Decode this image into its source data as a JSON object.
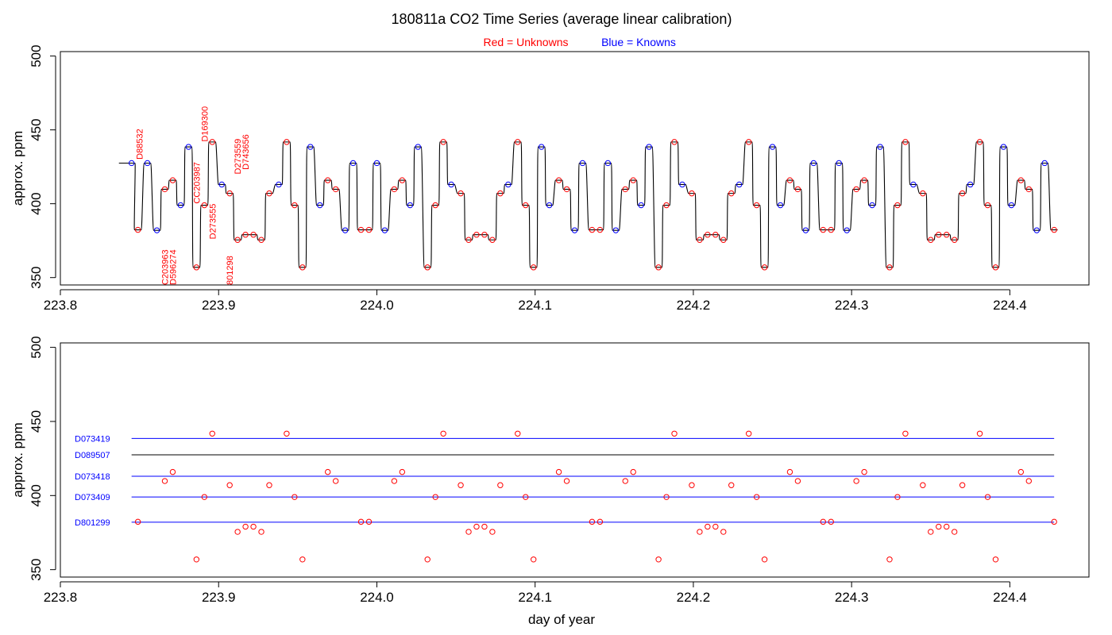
{
  "title": "180811a   CO2 Time Series (average linear calibration)",
  "legend": {
    "red_text": "Red = Unknowns",
    "blue_text": "Blue = Knowns",
    "placement": "top-center"
  },
  "colors": {
    "unknown": "#ff0000",
    "known": "#0000ff",
    "trace": "#000000",
    "ref_black": "#000000"
  },
  "chart_data": [
    {
      "type": "line",
      "panel": "top",
      "title": "",
      "xlabel": "",
      "ylabel": "approx. ppm",
      "xlim": [
        223.8,
        224.45
      ],
      "ylim": [
        345,
        503
      ],
      "x_ticks": [
        "223.8",
        "223.9",
        "224.0",
        "224.1",
        "224.2",
        "224.3",
        "224.4"
      ],
      "y_ticks": [
        "350",
        "400",
        "450",
        "500"
      ],
      "grid": false,
      "legend_placement": "top-center",
      "series": [
        {
          "name": "Unknowns",
          "color": "red",
          "points": [
            [
              223.849,
              382.3
            ],
            [
              223.866,
              409.8
            ],
            [
              223.871,
              415.9
            ],
            [
              223.886,
              356.9
            ],
            [
              223.891,
              399.0
            ],
            [
              223.896,
              441.8
            ],
            [
              223.907,
              407.0
            ],
            [
              223.912,
              375.5
            ],
            [
              223.917,
              379.0
            ],
            [
              223.922,
              379.0
            ],
            [
              223.927,
              375.5
            ],
            [
              223.932,
              407.0
            ],
            [
              223.943,
              441.8
            ],
            [
              223.948,
              399.0
            ],
            [
              223.953,
              356.9
            ],
            [
              223.969,
              415.9
            ],
            [
              223.974,
              409.8
            ],
            [
              223.99,
              382.3
            ],
            [
              223.995,
              382.3
            ],
            [
              224.011,
              409.8
            ],
            [
              224.016,
              415.9
            ],
            [
              224.032,
              356.9
            ],
            [
              224.037,
              399.0
            ],
            [
              224.042,
              441.8
            ],
            [
              224.053,
              407.0
            ],
            [
              224.058,
              375.5
            ],
            [
              224.063,
              379.0
            ],
            [
              224.068,
              379.0
            ],
            [
              224.073,
              375.5
            ],
            [
              224.078,
              407.0
            ],
            [
              224.089,
              441.8
            ],
            [
              224.094,
              399.0
            ],
            [
              224.099,
              356.9
            ],
            [
              224.115,
              415.9
            ],
            [
              224.12,
              409.8
            ],
            [
              224.136,
              382.3
            ],
            [
              224.141,
              382.3
            ],
            [
              224.157,
              409.8
            ],
            [
              224.162,
              415.9
            ],
            [
              224.178,
              356.9
            ],
            [
              224.183,
              399.0
            ],
            [
              224.188,
              441.8
            ],
            [
              224.199,
              407.0
            ],
            [
              224.204,
              375.5
            ],
            [
              224.209,
              379.0
            ],
            [
              224.214,
              379.0
            ],
            [
              224.219,
              375.5
            ],
            [
              224.224,
              407.0
            ],
            [
              224.235,
              441.8
            ],
            [
              224.24,
              399.0
            ],
            [
              224.245,
              356.9
            ],
            [
              224.261,
              415.9
            ],
            [
              224.266,
              409.8
            ],
            [
              224.282,
              382.3
            ],
            [
              224.287,
              382.3
            ],
            [
              224.303,
              409.8
            ],
            [
              224.308,
              415.9
            ],
            [
              224.324,
              356.9
            ],
            [
              224.329,
              399.0
            ],
            [
              224.334,
              441.8
            ],
            [
              224.345,
              407.0
            ],
            [
              224.35,
              375.5
            ],
            [
              224.355,
              379.0
            ],
            [
              224.36,
              379.0
            ],
            [
              224.365,
              375.5
            ],
            [
              224.37,
              407.0
            ],
            [
              224.381,
              441.8
            ],
            [
              224.386,
              399.0
            ],
            [
              224.391,
              356.9
            ],
            [
              224.407,
              415.9
            ],
            [
              224.412,
              409.8
            ],
            [
              224.428,
              382.3
            ]
          ]
        },
        {
          "name": "Knowns",
          "color": "blue",
          "points": [
            [
              223.845,
              427.5
            ],
            [
              223.855,
              427.5
            ],
            [
              223.861,
              382.0
            ],
            [
              223.876,
              399.0
            ],
            [
              223.881,
              438.5
            ],
            [
              223.902,
              413.0
            ],
            [
              223.938,
              413.0
            ],
            [
              223.958,
              438.5
            ],
            [
              223.964,
              399.0
            ],
            [
              223.98,
              382.0
            ],
            [
              223.985,
              427.5
            ],
            [
              224.0,
              427.5
            ],
            [
              224.005,
              382.0
            ],
            [
              224.021,
              399.0
            ],
            [
              224.026,
              438.5
            ],
            [
              224.047,
              413.0
            ],
            [
              224.083,
              413.0
            ],
            [
              224.104,
              438.5
            ],
            [
              224.109,
              399.0
            ],
            [
              224.125,
              382.0
            ],
            [
              224.13,
              427.5
            ],
            [
              224.146,
              427.5
            ],
            [
              224.151,
              382.0
            ],
            [
              224.167,
              399.0
            ],
            [
              224.172,
              438.5
            ],
            [
              224.193,
              413.0
            ],
            [
              224.229,
              413.0
            ],
            [
              224.25,
              438.5
            ],
            [
              224.255,
              399.0
            ],
            [
              224.271,
              382.0
            ],
            [
              224.276,
              427.5
            ],
            [
              224.292,
              427.5
            ],
            [
              224.297,
              382.0
            ],
            [
              224.313,
              399.0
            ],
            [
              224.318,
              438.5
            ],
            [
              224.339,
              413.0
            ],
            [
              224.375,
              413.0
            ],
            [
              224.396,
              438.5
            ],
            [
              224.401,
              399.0
            ],
            [
              224.417,
              382.0
            ],
            [
              224.422,
              427.5
            ]
          ]
        }
      ],
      "annotations": [
        {
          "text": "D88532",
          "x": 223.85,
          "y": 430
        },
        {
          "text": "C203963",
          "x": 223.866,
          "y": 345
        },
        {
          "text": "D596274",
          "x": 223.871,
          "y": 345
        },
        {
          "text": "CC203987",
          "x": 223.886,
          "y": 400
        },
        {
          "text": "D169300",
          "x": 223.891,
          "y": 442
        },
        {
          "text": "D273555",
          "x": 223.896,
          "y": 376
        },
        {
          "text": "801298",
          "x": 223.907,
          "y": 345
        },
        {
          "text": "D273559",
          "x": 223.912,
          "y": 420
        },
        {
          "text": "D743656",
          "x": 223.917,
          "y": 423
        }
      ]
    },
    {
      "type": "scatter",
      "panel": "bottom",
      "title": "",
      "xlabel": "day of year",
      "ylabel": "approx. ppm",
      "xlim": [
        223.8,
        224.45
      ],
      "ylim": [
        345,
        503
      ],
      "x_ticks": [
        "223.8",
        "223.9",
        "224.0",
        "224.1",
        "224.2",
        "224.3",
        "224.4"
      ],
      "y_ticks": [
        "350",
        "400",
        "450",
        "500"
      ],
      "grid": false,
      "reference_lines": [
        {
          "label": "D073419",
          "value": 438.5,
          "color": "blue"
        },
        {
          "label": "D089507",
          "value": 427.5,
          "color": "black"
        },
        {
          "label": "D073418",
          "value": 413.0,
          "color": "blue"
        },
        {
          "label": "D073409",
          "value": 399.0,
          "color": "blue"
        },
        {
          "label": "D801299",
          "value": 382.0,
          "color": "blue"
        }
      ],
      "series": [
        {
          "name": "Unknowns",
          "color": "red",
          "points_ref": "same as top panel Unknowns"
        }
      ]
    }
  ]
}
